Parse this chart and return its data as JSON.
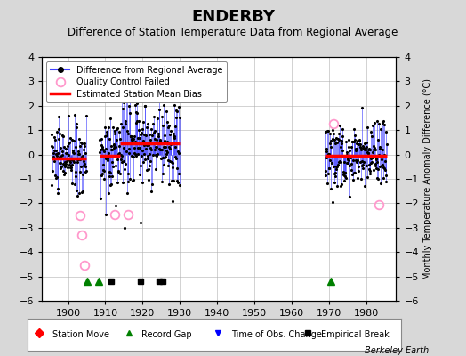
{
  "title": "ENDERBY",
  "subtitle": "Difference of Station Temperature Data from Regional Average",
  "ylabel": "Monthly Temperature Anomaly Difference (°C)",
  "xlim": [
    1893,
    1988
  ],
  "ylim": [
    -6,
    4
  ],
  "yticks": [
    -6,
    -5,
    -4,
    -3,
    -2,
    -1,
    0,
    1,
    2,
    3,
    4
  ],
  "xticks": [
    1900,
    1910,
    1920,
    1930,
    1940,
    1950,
    1960,
    1970,
    1980
  ],
  "background_color": "#d8d8d8",
  "plot_bg_color": "#ffffff",
  "grid_color": "#b0b0b0",
  "seg1_start": 1895.5,
  "seg1_end": 1905.0,
  "seg1_bias": -0.15,
  "seg1_seed": 10,
  "seg2_start": 1908.5,
  "seg2_end": 1930.0,
  "seg2_seed": 20,
  "seg2_bias1": -0.05,
  "seg2_bias1_end": 1914.0,
  "seg2_bias2": 0.45,
  "seg3_start": 1969.0,
  "seg3_end": 1985.5,
  "seg3_bias": -0.05,
  "seg3_seed": 30,
  "qc_failed": [
    [
      1903.2,
      -2.5
    ],
    [
      1903.8,
      -3.3
    ],
    [
      1904.5,
      -4.55
    ],
    [
      1912.5,
      -2.45
    ],
    [
      1916.2,
      -2.45
    ],
    [
      1971.2,
      1.25
    ],
    [
      1983.3,
      -2.05
    ]
  ],
  "record_gaps": [
    1905.2,
    1908.2,
    1970.5
  ],
  "empirical_breaks": [
    1911.5,
    1919.5,
    1924.5,
    1925.5
  ],
  "watermark": "Berkeley Earth",
  "title_fontsize": 13,
  "subtitle_fontsize": 8.5,
  "tick_fontsize": 8,
  "ylabel_fontsize": 7
}
